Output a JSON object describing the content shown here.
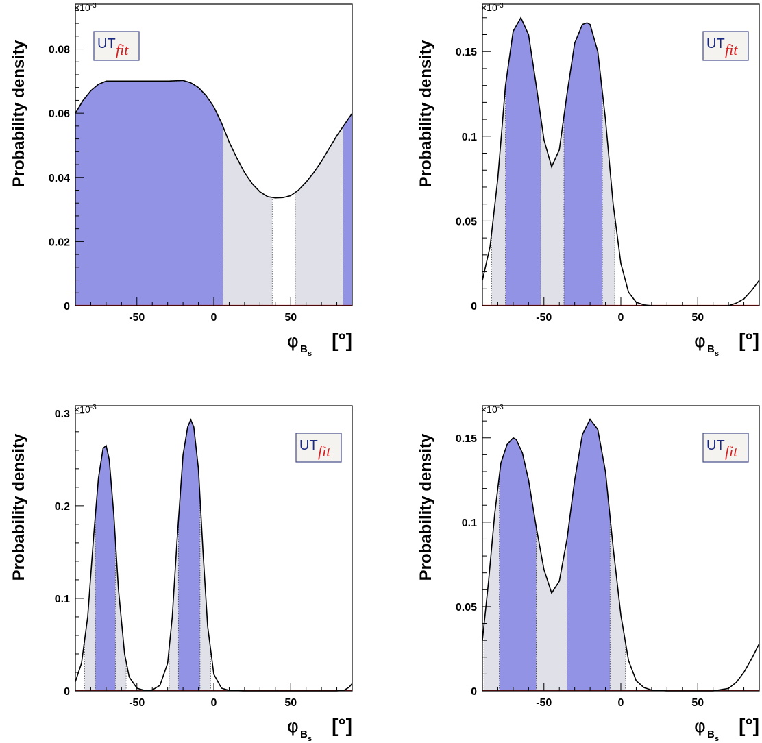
{
  "colors": {
    "band68": "#9393e6",
    "band95": "#dfe0e8",
    "curve": "#000000",
    "baseline": "#c01818",
    "logo_ut": "#1a2a80",
    "logo_fit": "#d42020"
  },
  "logo": {
    "ut": "UT",
    "fit": "fit"
  },
  "chart_data": [
    {
      "type": "area",
      "ylabel": "Probability density",
      "xlabel_symbol": "φ",
      "xlabel_sub": "B",
      "xlabel_subsub": "s",
      "xlabel_unit": "[°]",
      "y_scale_text": "×10-3",
      "xlim": [
        -90,
        90
      ],
      "ylim": [
        0,
        0.094
      ],
      "xticks": [
        -50,
        0,
        50
      ],
      "yticks": [
        0,
        0.02,
        0.04,
        0.06,
        0.08
      ],
      "ytick_labels": [
        "0",
        "0.02",
        "0.04",
        "0.06",
        "0.08"
      ],
      "logo_position": "top-left",
      "curve": {
        "x": [
          -90,
          -85,
          -80,
          -75,
          -70,
          -60,
          -50,
          -40,
          -30,
          -20,
          -15,
          -10,
          -5,
          0,
          5,
          10,
          15,
          20,
          25,
          30,
          35,
          40,
          45,
          50,
          55,
          60,
          65,
          70,
          75,
          80,
          85,
          90
        ],
        "y": [
          0.06,
          0.064,
          0.067,
          0.069,
          0.07,
          0.07,
          0.07,
          0.07,
          0.07,
          0.0702,
          0.0695,
          0.068,
          0.0655,
          0.062,
          0.057,
          0.051,
          0.046,
          0.0415,
          0.038,
          0.0355,
          0.034,
          0.0336,
          0.0337,
          0.0343,
          0.036,
          0.0385,
          0.0415,
          0.045,
          0.049,
          0.053,
          0.0565,
          0.06
        ]
      },
      "bands68": [
        [
          -90,
          6
        ],
        [
          84,
          90
        ]
      ],
      "bands95": [
        [
          6,
          38
        ],
        [
          53,
          84
        ]
      ]
    },
    {
      "type": "area",
      "ylabel": "Probability density",
      "xlabel_symbol": "φ",
      "xlabel_sub": "B",
      "xlabel_subsub": "s",
      "xlabel_unit": "[°]",
      "y_scale_text": "×10-3",
      "xlim": [
        -90,
        90
      ],
      "ylim": [
        0,
        0.178
      ],
      "xticks": [
        -50,
        0,
        50
      ],
      "yticks": [
        0,
        0.05,
        0.1,
        0.15
      ],
      "ytick_labels": [
        "0",
        "0.05",
        "0.1",
        "0.15"
      ],
      "logo_position": "top-right",
      "curve": {
        "x": [
          -90,
          -85,
          -80,
          -75,
          -70,
          -65,
          -60,
          -55,
          -50,
          -45,
          -40,
          -35,
          -30,
          -25,
          -22,
          -20,
          -15,
          -10,
          -5,
          0,
          5,
          10,
          15,
          20,
          30,
          40,
          50,
          60,
          70,
          75,
          80,
          85,
          90
        ],
        "y": [
          0.015,
          0.035,
          0.075,
          0.13,
          0.162,
          0.17,
          0.16,
          0.13,
          0.098,
          0.082,
          0.092,
          0.125,
          0.155,
          0.166,
          0.167,
          0.166,
          0.15,
          0.11,
          0.06,
          0.025,
          0.008,
          0.002,
          0.0005,
          0.0,
          0.0,
          0.0,
          0.0,
          0.0,
          0.0,
          0.0015,
          0.004,
          0.009,
          0.015
        ]
      },
      "bands68": [
        [
          -75,
          -52
        ],
        [
          -37,
          -12
        ]
      ],
      "bands95": [
        [
          -84,
          -75
        ],
        [
          -52,
          -37
        ],
        [
          -12,
          -4
        ]
      ]
    },
    {
      "type": "area",
      "ylabel": "Probability density",
      "xlabel_symbol": "φ",
      "xlabel_sub": "B",
      "xlabel_subsub": "s",
      "xlabel_unit": "[°]",
      "y_scale_text": "×10-3",
      "xlim": [
        -90,
        90
      ],
      "ylim": [
        0,
        0.308
      ],
      "xticks": [
        -50,
        0,
        50
      ],
      "yticks": [
        0,
        0.1,
        0.2,
        0.3
      ],
      "ytick_labels": [
        "0",
        "0.1",
        "0.2",
        "0.3"
      ],
      "logo_position": "top-right",
      "curve": {
        "x": [
          -90,
          -86,
          -82,
          -78,
          -75,
          -72,
          -70,
          -68,
          -65,
          -62,
          -58,
          -55,
          -50,
          -45,
          -40,
          -35,
          -30,
          -27,
          -24,
          -20,
          -17,
          -15,
          -13,
          -10,
          -7,
          -4,
          0,
          5,
          10,
          20,
          50,
          80,
          85,
          88,
          90
        ],
        "y": [
          0.01,
          0.03,
          0.08,
          0.17,
          0.23,
          0.262,
          0.265,
          0.25,
          0.19,
          0.11,
          0.04,
          0.015,
          0.003,
          0.0005,
          0.001,
          0.006,
          0.03,
          0.08,
          0.16,
          0.255,
          0.285,
          0.293,
          0.285,
          0.24,
          0.15,
          0.07,
          0.018,
          0.003,
          0.0005,
          0.0,
          0.0,
          0.0,
          0.001,
          0.004,
          0.008
        ]
      },
      "bands68": [
        [
          -77,
          -64
        ],
        [
          -23,
          -9
        ]
      ],
      "bands95": [
        [
          -84,
          -77
        ],
        [
          -64,
          -57
        ],
        [
          -29,
          -23
        ],
        [
          -9,
          -2
        ]
      ]
    },
    {
      "type": "area",
      "ylabel": "Probability density",
      "xlabel_symbol": "φ",
      "xlabel_sub": "B",
      "xlabel_subsub": "s",
      "xlabel_unit": "[°]",
      "y_scale_text": "×10-3",
      "xlim": [
        -90,
        90
      ],
      "ylim": [
        0,
        0.169
      ],
      "xticks": [
        -50,
        0,
        50
      ],
      "yticks": [
        0,
        0.05,
        0.1,
        0.15
      ],
      "ytick_labels": [
        "0",
        "0.05",
        "0.1",
        "0.15"
      ],
      "logo_position": "top-right",
      "curve": {
        "x": [
          -90,
          -86,
          -82,
          -78,
          -74,
          -70,
          -68,
          -64,
          -60,
          -55,
          -50,
          -45,
          -40,
          -35,
          -30,
          -25,
          -20,
          -15,
          -10,
          -5,
          0,
          5,
          10,
          15,
          20,
          30,
          40,
          50,
          60,
          70,
          75,
          80,
          85,
          90
        ],
        "y": [
          0.03,
          0.065,
          0.105,
          0.135,
          0.146,
          0.15,
          0.149,
          0.141,
          0.125,
          0.097,
          0.072,
          0.058,
          0.065,
          0.09,
          0.125,
          0.152,
          0.161,
          0.155,
          0.13,
          0.085,
          0.045,
          0.018,
          0.006,
          0.002,
          0.0005,
          0.0,
          0.0,
          0.0,
          0.0,
          0.0015,
          0.005,
          0.011,
          0.019,
          0.028
        ]
      },
      "bands68": [
        [
          -79,
          -55
        ],
        [
          -35,
          -7
        ]
      ],
      "bands95": [
        [
          -89,
          -79
        ],
        [
          -55,
          -35
        ],
        [
          -7,
          3
        ]
      ]
    }
  ]
}
